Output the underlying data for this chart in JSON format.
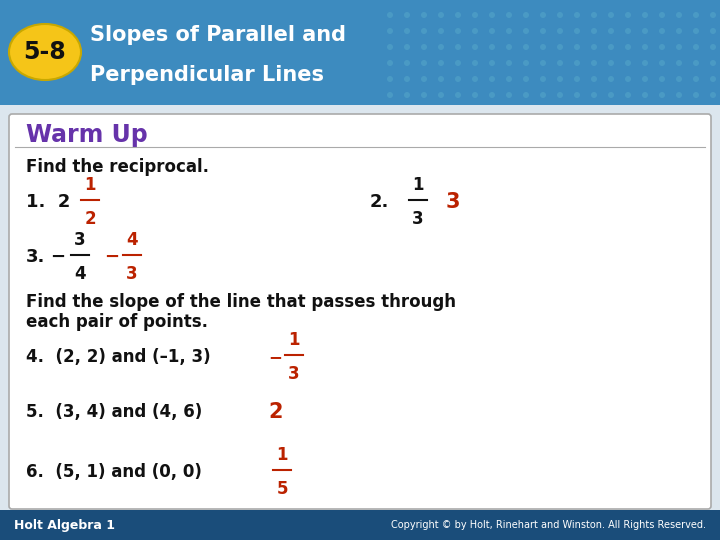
{
  "header_bg_color": "#3d8bbf",
  "badge_color": "#f5c518",
  "badge_text": "5-8",
  "badge_text_color": "#111111",
  "title_line1": "Slopes of Parallel and",
  "title_line2": "Perpendicular Lines",
  "title_color": "#ffffff",
  "body_bg_color": "#dce6ee",
  "content_bg_color": "#ffffff",
  "warm_up_color": "#6633aa",
  "warm_up_text": "Warm Up",
  "black": "#111111",
  "red": "#bb2200",
  "footer_bg": "#1a4d7a",
  "footer_text_left": "Holt Algebra 1",
  "footer_text_right": "Copyright © by Holt, Rinehart and Winston. All Rights Reserved.",
  "footer_color": "#ffffff",
  "dot_color": "#5aaecc"
}
